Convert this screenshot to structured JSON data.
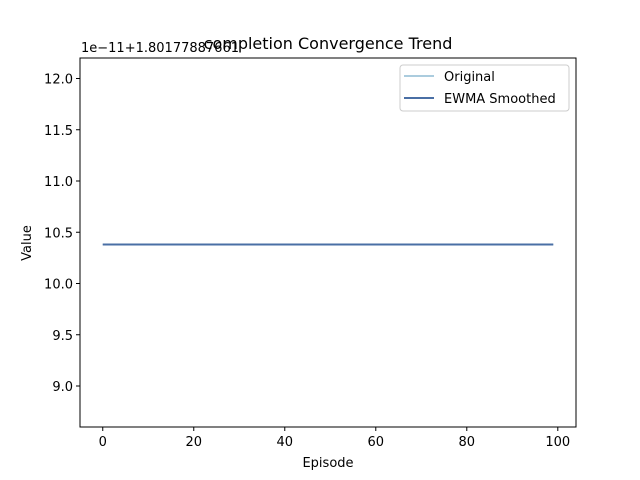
{
  "chart_data": {
    "type": "line",
    "title": "completion Convergence Trend",
    "xlabel": "Episode",
    "ylabel": "Value",
    "offset_text": "1e−11+1.80177887661",
    "xlim": [
      -5,
      104
    ],
    "ylim": [
      8.6,
      12.2
    ],
    "xticks": [
      0,
      20,
      40,
      60,
      80,
      100
    ],
    "yticks": [
      9.0,
      9.5,
      10.0,
      10.5,
      11.0,
      11.5,
      12.0
    ],
    "xtick_labels": [
      "0",
      "20",
      "40",
      "60",
      "80",
      "100"
    ],
    "ytick_labels": [
      "9.0",
      "9.5",
      "10.0",
      "10.5",
      "11.0",
      "11.5",
      "12.0"
    ],
    "legend_position": "upper right",
    "grid": false,
    "series": [
      {
        "name": "Original",
        "color": "#8fbcd4",
        "x": [
          0,
          10,
          20,
          30,
          40,
          50,
          60,
          70,
          80,
          90,
          99
        ],
        "y": [
          10.38,
          10.38,
          10.38,
          10.38,
          10.38,
          10.38,
          10.38,
          10.38,
          10.38,
          10.38,
          10.38
        ]
      },
      {
        "name": "EWMA Smoothed",
        "color": "#4a6fa5",
        "x": [
          0,
          10,
          20,
          30,
          40,
          50,
          60,
          70,
          80,
          90,
          99
        ],
        "y": [
          10.38,
          10.38,
          10.38,
          10.38,
          10.38,
          10.38,
          10.38,
          10.38,
          10.38,
          10.38,
          10.38
        ]
      }
    ]
  }
}
